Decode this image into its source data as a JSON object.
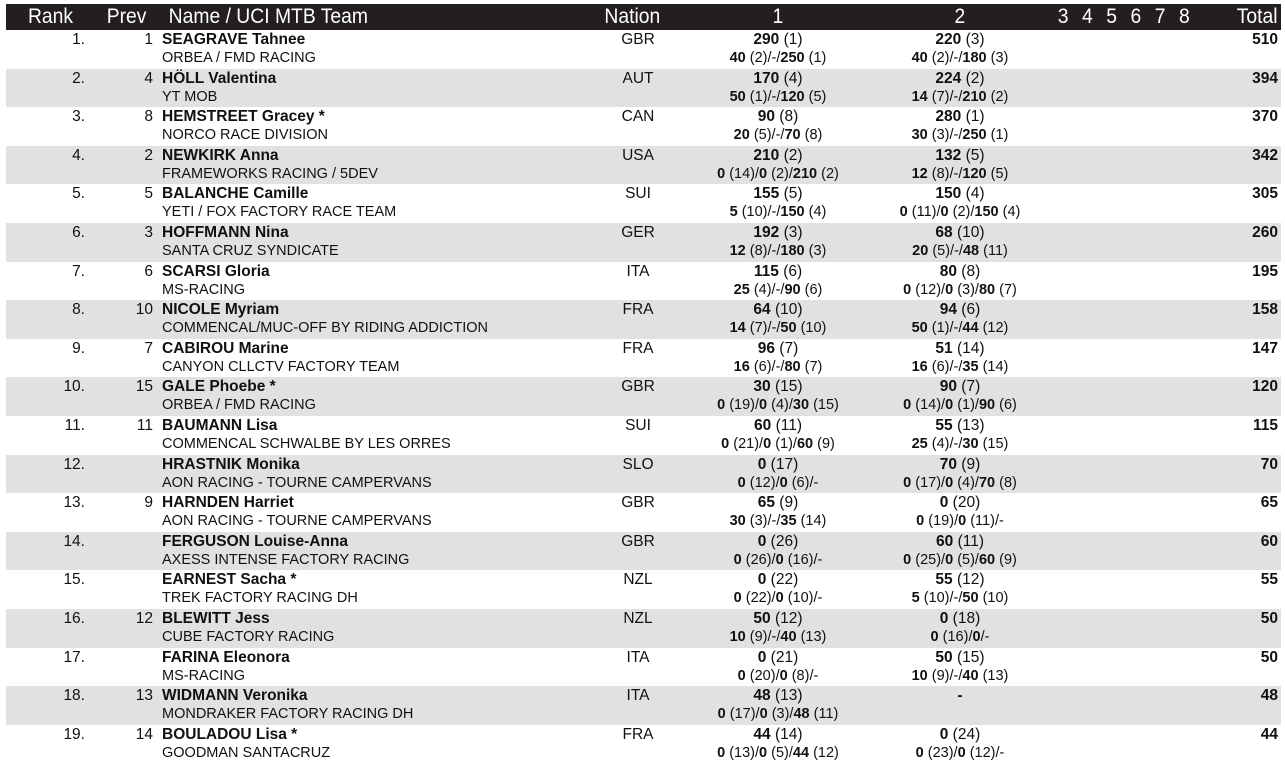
{
  "header": {
    "rank": "Rank",
    "prev": "Prev",
    "name_team": "Name / UCI MTB Team",
    "nation": "Nation",
    "round1": "1",
    "round2": "2",
    "rounds_rest": "3  4  5  6  7  8",
    "total": "Total"
  },
  "colors": {
    "header_bg": "#231f20",
    "header_text": "#ffffff",
    "alt_row_bg": "#e1e1e1"
  },
  "rows": [
    {
      "rank": "1.",
      "prev": "1",
      "name": "SEAGRAVE Tahnee",
      "team": "ORBEA / FMD RACING",
      "nation": "GBR",
      "r1": {
        "pts": "290",
        "pos": "(1)",
        "detail": [
          [
            "40",
            "(2)"
          ],
          [
            "-",
            ""
          ],
          [
            "250",
            "(1)"
          ]
        ]
      },
      "r2": {
        "pts": "220",
        "pos": "(3)",
        "detail": [
          [
            "40",
            "(2)"
          ],
          [
            "-",
            ""
          ],
          [
            "180",
            "(3)"
          ]
        ]
      },
      "total": "510"
    },
    {
      "rank": "2.",
      "prev": "4",
      "name": "HÖLL Valentina",
      "team": "YT MOB",
      "nation": "AUT",
      "r1": {
        "pts": "170",
        "pos": "(4)",
        "detail": [
          [
            "50",
            "(1)"
          ],
          [
            "-",
            ""
          ],
          [
            "120",
            "(5)"
          ]
        ]
      },
      "r2": {
        "pts": "224",
        "pos": "(2)",
        "detail": [
          [
            "14",
            "(7)"
          ],
          [
            "-",
            ""
          ],
          [
            "210",
            "(2)"
          ]
        ]
      },
      "total": "394"
    },
    {
      "rank": "3.",
      "prev": "8",
      "name": "HEMSTREET Gracey *",
      "team": "NORCO RACE DIVISION",
      "nation": "CAN",
      "r1": {
        "pts": "90",
        "pos": "(8)",
        "detail": [
          [
            "20",
            "(5)"
          ],
          [
            "-",
            ""
          ],
          [
            "70",
            "(8)"
          ]
        ]
      },
      "r2": {
        "pts": "280",
        "pos": "(1)",
        "detail": [
          [
            "30",
            "(3)"
          ],
          [
            "-",
            ""
          ],
          [
            "250",
            "(1)"
          ]
        ]
      },
      "total": "370"
    },
    {
      "rank": "4.",
      "prev": "2",
      "name": "NEWKIRK Anna",
      "team": "FRAMEWORKS RACING / 5DEV",
      "nation": "USA",
      "r1": {
        "pts": "210",
        "pos": "(2)",
        "detail": [
          [
            "0",
            "(14)"
          ],
          [
            "0",
            "(2)"
          ],
          [
            "210",
            "(2)"
          ]
        ]
      },
      "r2": {
        "pts": "132",
        "pos": "(5)",
        "detail": [
          [
            "12",
            "(8)"
          ],
          [
            "-",
            ""
          ],
          [
            "120",
            "(5)"
          ]
        ]
      },
      "total": "342"
    },
    {
      "rank": "5.",
      "prev": "5",
      "name": "BALANCHE Camille",
      "team": "YETI / FOX FACTORY RACE TEAM",
      "nation": "SUI",
      "r1": {
        "pts": "155",
        "pos": "(5)",
        "detail": [
          [
            "5",
            "(10)"
          ],
          [
            "-",
            ""
          ],
          [
            "150",
            "(4)"
          ]
        ]
      },
      "r2": {
        "pts": "150",
        "pos": "(4)",
        "detail": [
          [
            "0",
            "(11)"
          ],
          [
            "0",
            "(2)"
          ],
          [
            "150",
            "(4)"
          ]
        ]
      },
      "total": "305"
    },
    {
      "rank": "6.",
      "prev": "3",
      "name": "HOFFMANN Nina",
      "team": "SANTA CRUZ SYNDICATE",
      "nation": "GER",
      "r1": {
        "pts": "192",
        "pos": "(3)",
        "detail": [
          [
            "12",
            "(8)"
          ],
          [
            "-",
            ""
          ],
          [
            "180",
            "(3)"
          ]
        ]
      },
      "r2": {
        "pts": "68",
        "pos": "(10)",
        "detail": [
          [
            "20",
            "(5)"
          ],
          [
            "-",
            ""
          ],
          [
            "48",
            "(11)"
          ]
        ]
      },
      "total": "260"
    },
    {
      "rank": "7.",
      "prev": "6",
      "name": "SCARSI Gloria",
      "team": "MS-RACING",
      "nation": "ITA",
      "r1": {
        "pts": "115",
        "pos": "(6)",
        "detail": [
          [
            "25",
            "(4)"
          ],
          [
            "-",
            ""
          ],
          [
            "90",
            "(6)"
          ]
        ]
      },
      "r2": {
        "pts": "80",
        "pos": "(8)",
        "detail": [
          [
            "0",
            "(12)"
          ],
          [
            "0",
            "(3)"
          ],
          [
            "80",
            "(7)"
          ]
        ]
      },
      "total": "195"
    },
    {
      "rank": "8.",
      "prev": "10",
      "name": "NICOLE Myriam",
      "team": "COMMENCAL/MUC-OFF BY RIDING ADDICTION",
      "nation": "FRA",
      "r1": {
        "pts": "64",
        "pos": "(10)",
        "detail": [
          [
            "14",
            "(7)"
          ],
          [
            "-",
            ""
          ],
          [
            "50",
            "(10)"
          ]
        ]
      },
      "r2": {
        "pts": "94",
        "pos": "(6)",
        "detail": [
          [
            "50",
            "(1)"
          ],
          [
            "-",
            ""
          ],
          [
            "44",
            "(12)"
          ]
        ]
      },
      "total": "158"
    },
    {
      "rank": "9.",
      "prev": "7",
      "name": "CABIROU Marine",
      "team": "CANYON CLLCTV FACTORY TEAM",
      "nation": "FRA",
      "r1": {
        "pts": "96",
        "pos": "(7)",
        "detail": [
          [
            "16",
            "(6)"
          ],
          [
            "-",
            ""
          ],
          [
            "80",
            "(7)"
          ]
        ]
      },
      "r2": {
        "pts": "51",
        "pos": "(14)",
        "detail": [
          [
            "16",
            "(6)"
          ],
          [
            "-",
            ""
          ],
          [
            "35",
            "(14)"
          ]
        ]
      },
      "total": "147"
    },
    {
      "rank": "10.",
      "prev": "15",
      "name": "GALE Phoebe *",
      "team": "ORBEA / FMD RACING",
      "nation": "GBR",
      "r1": {
        "pts": "30",
        "pos": "(15)",
        "detail": [
          [
            "0",
            "(19)"
          ],
          [
            "0",
            "(4)"
          ],
          [
            "30",
            "(15)"
          ]
        ]
      },
      "r2": {
        "pts": "90",
        "pos": "(7)",
        "detail": [
          [
            "0",
            "(14)"
          ],
          [
            "0",
            "(1)"
          ],
          [
            "90",
            "(6)"
          ]
        ]
      },
      "total": "120"
    },
    {
      "rank": "11.",
      "prev": "11",
      "name": "BAUMANN Lisa",
      "team": "COMMENCAL SCHWALBE BY LES ORRES",
      "nation": "SUI",
      "r1": {
        "pts": "60",
        "pos": "(11)",
        "detail": [
          [
            "0",
            "(21)"
          ],
          [
            "0",
            "(1)"
          ],
          [
            "60",
            "(9)"
          ]
        ]
      },
      "r2": {
        "pts": "55",
        "pos": "(13)",
        "detail": [
          [
            "25",
            "(4)"
          ],
          [
            "-",
            ""
          ],
          [
            "30",
            "(15)"
          ]
        ]
      },
      "total": "115"
    },
    {
      "rank": "12.",
      "prev": "",
      "name": "HRASTNIK Monika",
      "team": "AON RACING - TOURNE CAMPERVANS",
      "nation": "SLO",
      "r1": {
        "pts": "0",
        "pos": "(17)",
        "detail": [
          [
            "0",
            "(12)"
          ],
          [
            "0",
            "(6)"
          ],
          [
            "-",
            ""
          ]
        ]
      },
      "r2": {
        "pts": "70",
        "pos": "(9)",
        "detail": [
          [
            "0",
            "(17)"
          ],
          [
            "0",
            "(4)"
          ],
          [
            "70",
            "(8)"
          ]
        ]
      },
      "total": "70"
    },
    {
      "rank": "13.",
      "prev": "9",
      "name": "HARNDEN Harriet",
      "team": "AON RACING - TOURNE CAMPERVANS",
      "nation": "GBR",
      "r1": {
        "pts": "65",
        "pos": "(9)",
        "detail": [
          [
            "30",
            "(3)"
          ],
          [
            "-",
            ""
          ],
          [
            "35",
            "(14)"
          ]
        ]
      },
      "r2": {
        "pts": "0",
        "pos": "(20)",
        "detail": [
          [
            "0",
            "(19)"
          ],
          [
            "0",
            "(11)"
          ],
          [
            "-",
            ""
          ]
        ]
      },
      "total": "65"
    },
    {
      "rank": "14.",
      "prev": "",
      "name": "FERGUSON Louise-Anna",
      "team": "AXESS INTENSE FACTORY RACING",
      "nation": "GBR",
      "r1": {
        "pts": "0",
        "pos": "(26)",
        "detail": [
          [
            "0",
            "(26)"
          ],
          [
            "0",
            "(16)"
          ],
          [
            "-",
            ""
          ]
        ]
      },
      "r2": {
        "pts": "60",
        "pos": "(11)",
        "detail": [
          [
            "0",
            "(25)"
          ],
          [
            "0",
            "(5)"
          ],
          [
            "60",
            "(9)"
          ]
        ]
      },
      "total": "60"
    },
    {
      "rank": "15.",
      "prev": "",
      "name": "EARNEST Sacha *",
      "team": "TREK FACTORY RACING DH",
      "nation": "NZL",
      "r1": {
        "pts": "0",
        "pos": "(22)",
        "detail": [
          [
            "0",
            "(22)"
          ],
          [
            "0",
            "(10)"
          ],
          [
            "-",
            ""
          ]
        ]
      },
      "r2": {
        "pts": "55",
        "pos": "(12)",
        "detail": [
          [
            "5",
            "(10)"
          ],
          [
            "-",
            ""
          ],
          [
            "50",
            "(10)"
          ]
        ]
      },
      "total": "55"
    },
    {
      "rank": "16.",
      "prev": "12",
      "name": "BLEWITT Jess",
      "team": "CUBE FACTORY RACING",
      "nation": "NZL",
      "r1": {
        "pts": "50",
        "pos": "(12)",
        "detail": [
          [
            "10",
            "(9)"
          ],
          [
            "-",
            ""
          ],
          [
            "40",
            "(13)"
          ]
        ]
      },
      "r2": {
        "pts": "0",
        "pos": "(18)",
        "detail": [
          [
            "0",
            "(16)"
          ],
          [
            "0",
            ""
          ],
          [
            "-",
            ""
          ]
        ]
      },
      "total": "50"
    },
    {
      "rank": "17.",
      "prev": "",
      "name": "FARINA Eleonora",
      "team": "MS-RACING",
      "nation": "ITA",
      "r1": {
        "pts": "0",
        "pos": "(21)",
        "detail": [
          [
            "0",
            "(20)"
          ],
          [
            "0",
            "(8)"
          ],
          [
            "-",
            ""
          ]
        ]
      },
      "r2": {
        "pts": "50",
        "pos": "(15)",
        "detail": [
          [
            "10",
            "(9)"
          ],
          [
            "-",
            ""
          ],
          [
            "40",
            "(13)"
          ]
        ]
      },
      "total": "50"
    },
    {
      "rank": "18.",
      "prev": "13",
      "name": "WIDMANN Veronika",
      "team": "MONDRAKER FACTORY RACING DH",
      "nation": "ITA",
      "r1": {
        "pts": "48",
        "pos": "(13)",
        "detail": [
          [
            "0",
            "(17)"
          ],
          [
            "0",
            "(3)"
          ],
          [
            "48",
            "(11)"
          ]
        ]
      },
      "r2": {
        "pts": "-",
        "pos": "",
        "detail": []
      },
      "total": "48"
    },
    {
      "rank": "19.",
      "prev": "14",
      "name": "BOULADOU Lisa *",
      "team": "GOODMAN SANTACRUZ",
      "nation": "FRA",
      "r1": {
        "pts": "44",
        "pos": "(14)",
        "detail": [
          [
            "0",
            "(13)"
          ],
          [
            "0",
            "(5)"
          ],
          [
            "44",
            "(12)"
          ]
        ]
      },
      "r2": {
        "pts": "0",
        "pos": "(24)",
        "detail": [
          [
            "0",
            "(23)"
          ],
          [
            "0",
            "(12)"
          ],
          [
            "-",
            ""
          ]
        ]
      },
      "total": "44"
    }
  ]
}
